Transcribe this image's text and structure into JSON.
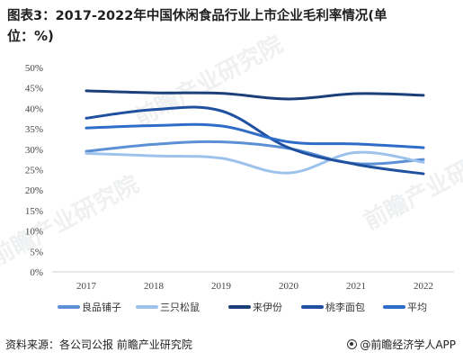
{
  "title_line1": "图表3：2017-2022年中国休闲食品行业上市企业毛利率情况(单",
  "title_line2": "位：%)",
  "footer": {
    "source": "资料来源：各公司公报 前瞻产业研究院",
    "brand": "@前瞻经济学人APP"
  },
  "watermarks": [
    "前瞻产业研究院",
    "前瞻产业研究院",
    "前瞻产业研究院"
  ],
  "chart_data": {
    "type": "line",
    "x": [
      "2017",
      "2018",
      "2019",
      "2020",
      "2021",
      "2022"
    ],
    "ylim": [
      0,
      50
    ],
    "yticks": [
      "0%",
      "5%",
      "10%",
      "15%",
      "20%",
      "25%",
      "30%",
      "35%",
      "40%",
      "45%",
      "50%"
    ],
    "legend_position": "bottom",
    "grid": false,
    "series": [
      {
        "name": "良品铺子",
        "color": "#5b8fd6",
        "values": [
          29.5,
          31.2,
          31.8,
          30.2,
          26.5,
          27.5
        ]
      },
      {
        "name": "三只松鼠",
        "color": "#9dc3ec",
        "values": [
          29.0,
          28.4,
          27.8,
          24.2,
          29.2,
          26.8
        ]
      },
      {
        "name": "来伊份",
        "color": "#1a3f7a",
        "values": [
          44.3,
          43.8,
          43.7,
          42.3,
          43.6,
          43.2
        ]
      },
      {
        "name": "桃李面包",
        "color": "#2050a0",
        "values": [
          37.6,
          39.7,
          39.4,
          30.4,
          26.3,
          24.0
        ]
      },
      {
        "name": "平均",
        "color": "#2e6cc7",
        "values": [
          35.2,
          35.8,
          35.7,
          31.8,
          31.3,
          30.4
        ]
      }
    ]
  }
}
